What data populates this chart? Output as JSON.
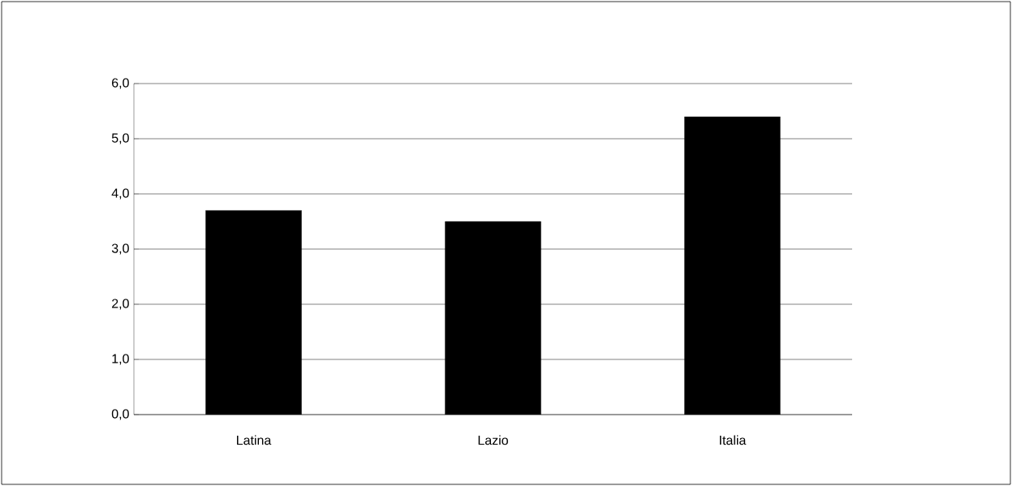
{
  "chart_data": {
    "type": "bar",
    "categories": [
      "Latina",
      "Lazio",
      "Italia"
    ],
    "values": [
      3.7,
      3.5,
      5.4
    ],
    "color": "#000000",
    "ylim": [
      0,
      6
    ],
    "yticks": [
      {
        "value": 0,
        "label": "0,0"
      },
      {
        "value": 1,
        "label": "1,0"
      },
      {
        "value": 2,
        "label": "2,0"
      },
      {
        "value": 3,
        "label": "3,0"
      },
      {
        "value": 4,
        "label": "4,0"
      },
      {
        "value": 5,
        "label": "5,0"
      },
      {
        "value": 6,
        "label": "6,0"
      }
    ],
    "grid": "y"
  }
}
